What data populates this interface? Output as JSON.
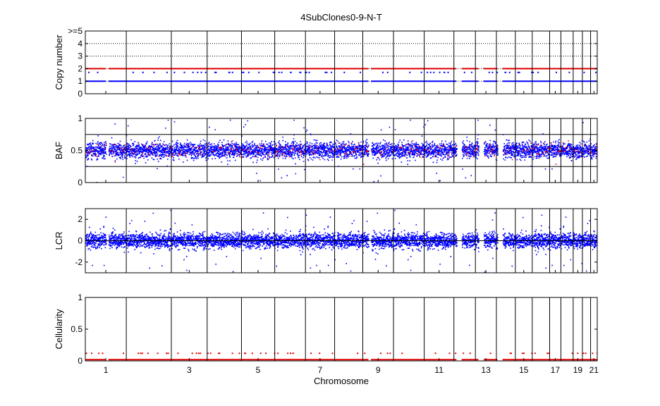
{
  "figure": {
    "title": "4SubClones0-9-N-T",
    "xlabel": "Chromosome",
    "colors": {
      "red": "#e00000",
      "blue": "#0000ff",
      "axis": "#000000",
      "grid": "#000000"
    }
  },
  "chart_data": {
    "type": "scatter",
    "title": "4SubClones0-9-N-T",
    "xlabel": "Chromosome",
    "chromosome_tick_labels": [
      "1",
      "3",
      "5",
      "7",
      "9",
      "11",
      "13",
      "15",
      "17",
      "19",
      "21"
    ],
    "chromosome_boundaries_relative": [
      0,
      0.08,
      0.168,
      0.238,
      0.305,
      0.37,
      0.43,
      0.487,
      0.542,
      0.602,
      0.662,
      0.72,
      0.762,
      0.803,
      0.84,
      0.873,
      0.907,
      0.929,
      0.953,
      0.971,
      0.987,
      1.0
    ],
    "panels": [
      {
        "id": "copy-number",
        "ylabel": "Copy number",
        "ylim": [
          0,
          5
        ],
        "yticks": [
          "0",
          "1",
          "2",
          "3",
          "4",
          ">=5"
        ],
        "grid": "dotted",
        "series": [
          {
            "name": "",
            "color": "red",
            "values": "constant 2"
          },
          {
            "name": "",
            "color": "blue",
            "values": "constant 1"
          }
        ]
      },
      {
        "id": "baf",
        "ylabel": "BAF",
        "ylim": [
          0,
          1
        ],
        "yticks": [
          "0",
          "0.5",
          "1"
        ],
        "extra_gridlines": [
          0.25,
          0.75
        ],
        "scatter_center": 0.5
      },
      {
        "id": "lcr",
        "ylabel": "LCR",
        "ylim": [
          -3,
          3
        ],
        "yticks": [
          "-2",
          "0",
          "2"
        ],
        "scatter_center": 0
      },
      {
        "id": "cellularity",
        "ylabel": "Cellularity",
        "ylim": [
          0,
          1
        ],
        "yticks": [
          "0",
          "0.5",
          "1"
        ],
        "baseline_value": 0.02,
        "sparse_value": 0.12
      }
    ]
  }
}
